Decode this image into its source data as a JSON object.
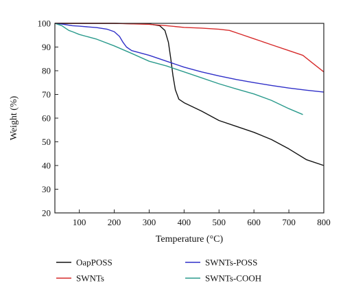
{
  "chart_data": {
    "type": "line",
    "xlabel": "Temperature (°C)",
    "ylabel": "Weight (%)",
    "xlim": [
      30,
      800
    ],
    "ylim": [
      20,
      100
    ],
    "x_ticks": [
      100,
      200,
      300,
      400,
      500,
      600,
      700,
      800
    ],
    "y_ticks": [
      20,
      30,
      40,
      50,
      60,
      70,
      80,
      90,
      100
    ],
    "legend_position": "bottom",
    "series": [
      {
        "name": "OapPOSS",
        "color": "#111111",
        "points": [
          [
            30,
            100
          ],
          [
            100,
            100
          ],
          [
            200,
            100
          ],
          [
            300,
            99.7
          ],
          [
            330,
            99
          ],
          [
            345,
            97
          ],
          [
            355,
            92
          ],
          [
            362,
            85
          ],
          [
            368,
            78
          ],
          [
            375,
            72
          ],
          [
            385,
            68
          ],
          [
            400,
            66.5
          ],
          [
            450,
            63
          ],
          [
            500,
            59
          ],
          [
            550,
            56.5
          ],
          [
            600,
            54
          ],
          [
            650,
            51
          ],
          [
            700,
            47
          ],
          [
            750,
            42.5
          ],
          [
            800,
            40
          ]
        ]
      },
      {
        "name": "SWNTs",
        "color": "#d62a2a",
        "points": [
          [
            30,
            100
          ],
          [
            100,
            100
          ],
          [
            200,
            100
          ],
          [
            300,
            99.6
          ],
          [
            350,
            99
          ],
          [
            400,
            98.3
          ],
          [
            450,
            98
          ],
          [
            500,
            97.5
          ],
          [
            530,
            97
          ],
          [
            560,
            95.5
          ],
          [
            600,
            93.5
          ],
          [
            650,
            91
          ],
          [
            700,
            88.5
          ],
          [
            740,
            86.5
          ],
          [
            770,
            83
          ],
          [
            800,
            79.5
          ]
        ]
      },
      {
        "name": "SWNTs-POSS",
        "color": "#2f2fc8",
        "points": [
          [
            30,
            100
          ],
          [
            50,
            99.7
          ],
          [
            80,
            99
          ],
          [
            100,
            98.8
          ],
          [
            150,
            98.2
          ],
          [
            180,
            97.5
          ],
          [
            200,
            96.5
          ],
          [
            215,
            94.5
          ],
          [
            225,
            92
          ],
          [
            235,
            90
          ],
          [
            250,
            88.5
          ],
          [
            300,
            86.5
          ],
          [
            350,
            84
          ],
          [
            400,
            81.5
          ],
          [
            450,
            79.5
          ],
          [
            500,
            77.8
          ],
          [
            550,
            76.3
          ],
          [
            600,
            75
          ],
          [
            650,
            73.8
          ],
          [
            700,
            72.7
          ],
          [
            750,
            71.8
          ],
          [
            800,
            71
          ]
        ]
      },
      {
        "name": "SWNTs-COOH",
        "color": "#2a9a8c",
        "points": [
          [
            30,
            100
          ],
          [
            50,
            99
          ],
          [
            60,
            98
          ],
          [
            70,
            97
          ],
          [
            80,
            96.5
          ],
          [
            100,
            95.3
          ],
          [
            150,
            93.3
          ],
          [
            200,
            90.5
          ],
          [
            250,
            87.3
          ],
          [
            300,
            84
          ],
          [
            350,
            82
          ],
          [
            400,
            79.5
          ],
          [
            450,
            77
          ],
          [
            500,
            74.5
          ],
          [
            550,
            72.3
          ],
          [
            600,
            70.2
          ],
          [
            650,
            67.5
          ],
          [
            700,
            64
          ],
          [
            740,
            61.5
          ]
        ]
      }
    ]
  }
}
